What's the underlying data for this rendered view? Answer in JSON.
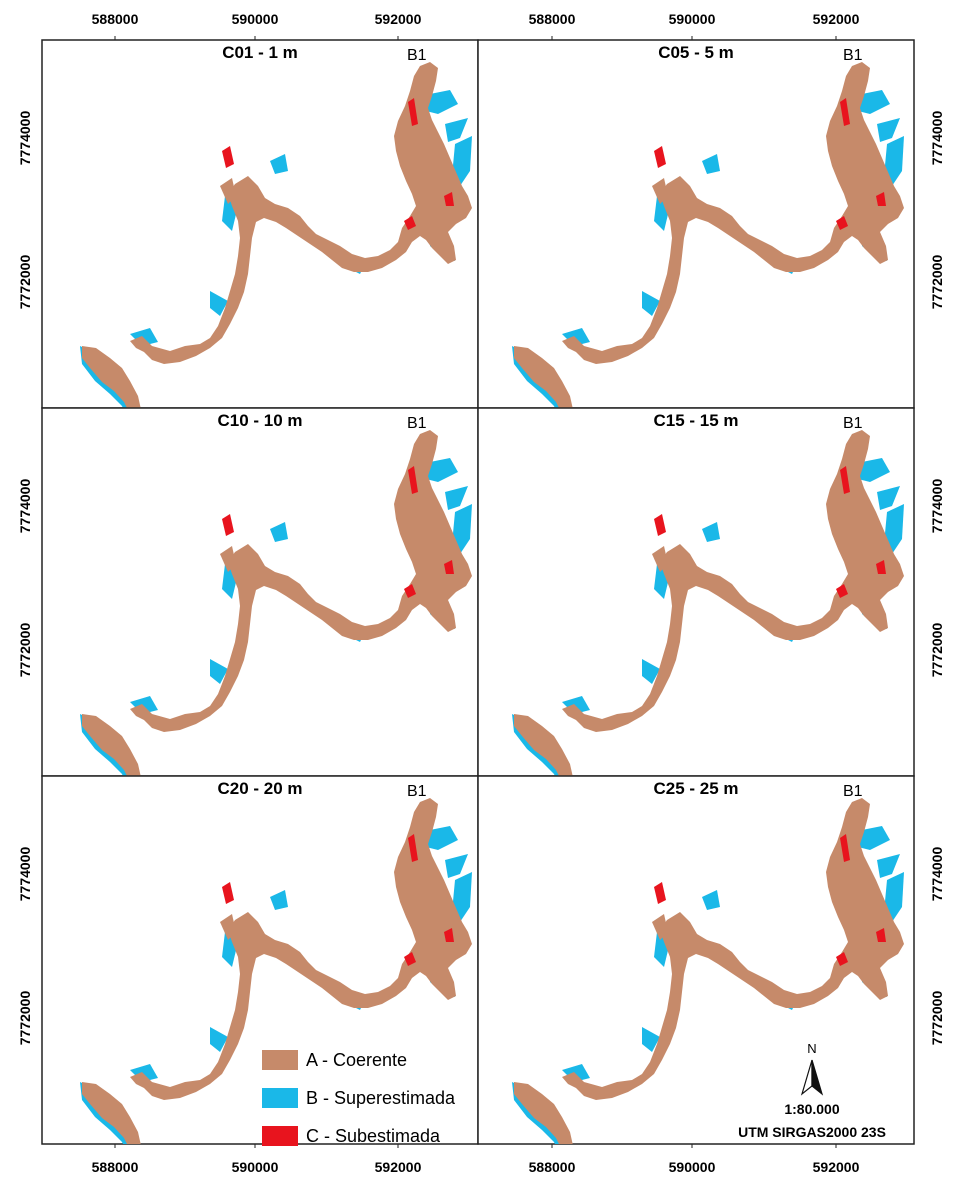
{
  "figure": {
    "panels": [
      {
        "title": "C01 - 1 m",
        "label": "B1"
      },
      {
        "title": "C05 - 5 m",
        "label": "B1"
      },
      {
        "title": "C10 - 10 m",
        "label": "B1"
      },
      {
        "title": "C15 - 15 m",
        "label": "B1"
      },
      {
        "title": "C20 - 20 m",
        "label": "B1"
      },
      {
        "title": "C25 - 25 m",
        "label": "B1"
      }
    ],
    "x_ticks": [
      "588000",
      "590000",
      "592000"
    ],
    "y_ticks": [
      "7774000",
      "7772000"
    ],
    "legend": [
      {
        "label": "A - Coerente",
        "color": "#c68a6a"
      },
      {
        "label": "B - Superestimada",
        "color": "#1ab8e8"
      },
      {
        "label": "C - Subestimada",
        "color": "#e8141e"
      }
    ],
    "north_arrow": {
      "symbol": "N"
    },
    "scale": "1:80.000",
    "crs": "UTM SIRGAS2000 23S"
  }
}
